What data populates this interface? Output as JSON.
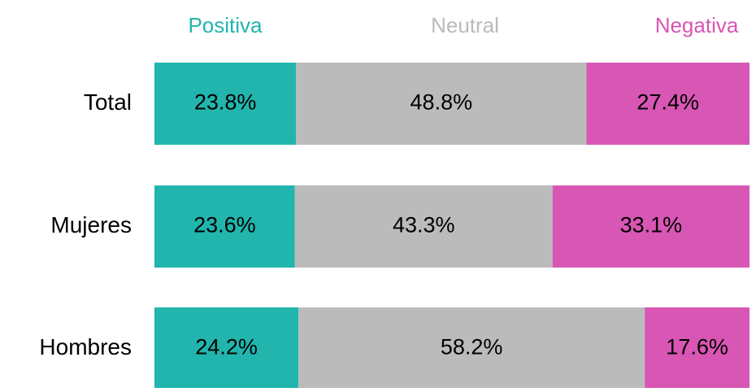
{
  "chart_data": {
    "type": "stacked-bar-horizontal",
    "categories": [
      "Total",
      "Mujeres",
      "Hombres"
    ],
    "series": [
      {
        "name": "Positiva",
        "color": "#21b5ad",
        "values": [
          23.8,
          23.6,
          24.2
        ],
        "value_labels": [
          "23.8%",
          "23.6%",
          "24.2%"
        ]
      },
      {
        "name": "Neutral",
        "color": "#bbbbbb",
        "values": [
          48.8,
          43.3,
          58.2
        ],
        "value_labels": [
          "48.8%",
          "43.3%",
          "58.2%"
        ]
      },
      {
        "name": "Negativa",
        "color": "#d856b4",
        "values": [
          27.4,
          33.1,
          17.6
        ],
        "value_labels": [
          "27.4%",
          "33.1%",
          "17.6%"
        ]
      }
    ],
    "xlim": [
      0,
      100
    ]
  }
}
